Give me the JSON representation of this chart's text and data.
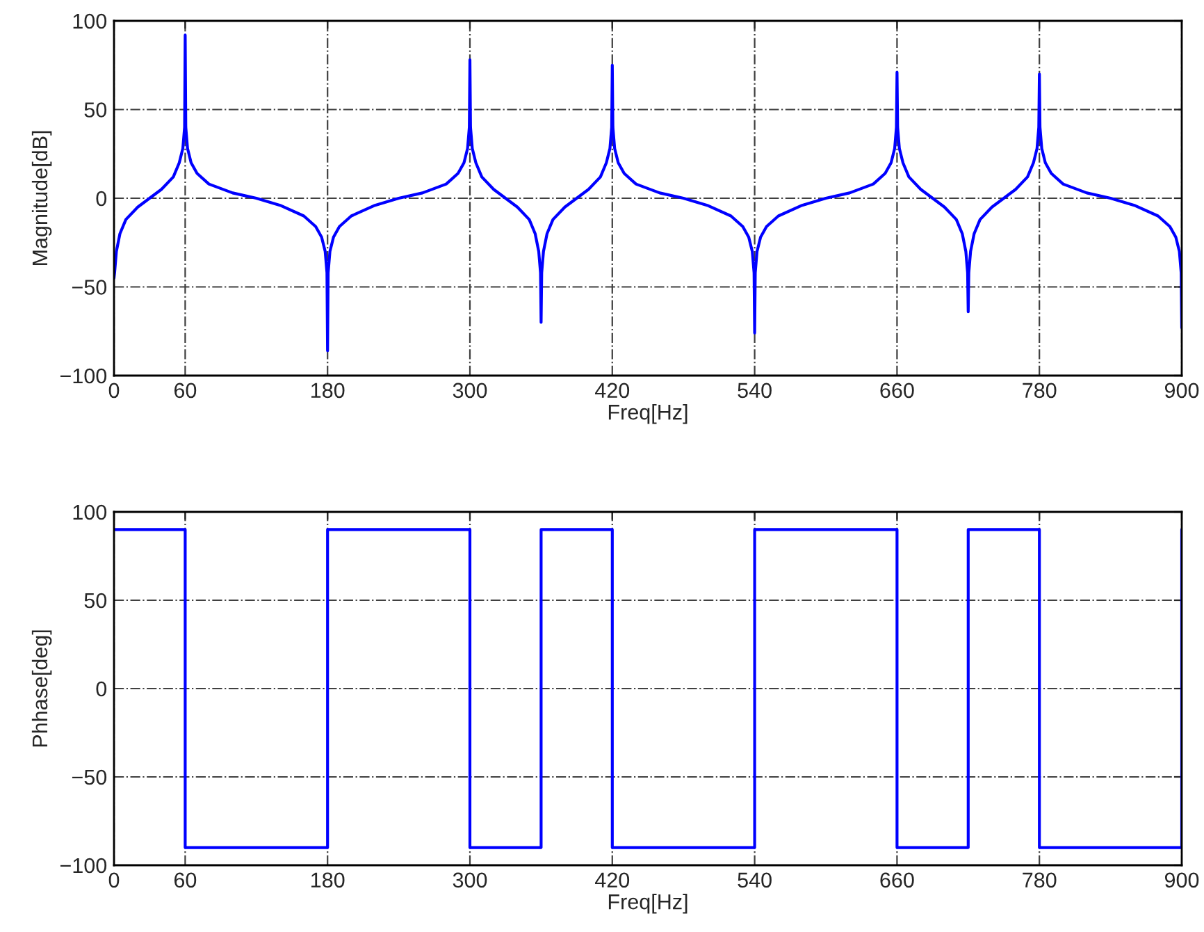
{
  "chart_data": [
    {
      "type": "line",
      "xlabel": "Freq[Hz]",
      "ylabel": "Magnitude[dB]",
      "xlim": [
        0,
        900
      ],
      "ylim": [
        -100,
        100
      ],
      "xticks": [
        0,
        60,
        180,
        300,
        420,
        540,
        660,
        780,
        900
      ],
      "yticks": [
        -100,
        -50,
        0,
        50,
        100
      ],
      "grid": true,
      "legend": false,
      "series": [
        {
          "color": "#0000ff",
          "line_style": "solid",
          "x": [
            0,
            0.5,
            2,
            5,
            10,
            20,
            30,
            40,
            50,
            55,
            58,
            59.5,
            60,
            60.5,
            62,
            65,
            70,
            80,
            100,
            120,
            140,
            160,
            170,
            175,
            178,
            179.5,
            180,
            180.5,
            182,
            185,
            190,
            200,
            220,
            240,
            260,
            280,
            290,
            295,
            298,
            299.5,
            300,
            300.5,
            302,
            305,
            310,
            320,
            330,
            340,
            350,
            355,
            358,
            359.5,
            360,
            360.5,
            362,
            365,
            370,
            380,
            390,
            400,
            410,
            415,
            418,
            419.5,
            420,
            420.5,
            422,
            425,
            430,
            440,
            460,
            480,
            500,
            520,
            530,
            535,
            538,
            539.5,
            540,
            540.5,
            542,
            545,
            550,
            560,
            580,
            600,
            620,
            640,
            650,
            655,
            658,
            659.5,
            660,
            660.5,
            662,
            665,
            670,
            680,
            690,
            700,
            710,
            715,
            718,
            719.5,
            720,
            720.5,
            722,
            725,
            730,
            740,
            750,
            760,
            770,
            775,
            778,
            779.5,
            780,
            780.5,
            782,
            785,
            790,
            800,
            820,
            840,
            860,
            880,
            890,
            895,
            898,
            899.5,
            900
          ],
          "values": [
            -45,
            -42,
            -30,
            -20,
            -12,
            -5,
            0,
            5,
            12,
            20,
            28,
            40,
            92,
            40,
            28,
            20,
            14,
            8,
            3,
            0,
            -4,
            -10,
            -16,
            -22,
            -30,
            -42,
            -86,
            -42,
            -30,
            -22,
            -16,
            -10,
            -4,
            0,
            3,
            8,
            14,
            20,
            28,
            40,
            78,
            40,
            28,
            20,
            12,
            5,
            0,
            -5,
            -12,
            -20,
            -30,
            -42,
            -70,
            -42,
            -30,
            -20,
            -12,
            -5,
            0,
            5,
            12,
            20,
            28,
            40,
            75,
            40,
            28,
            20,
            14,
            8,
            3,
            0,
            -4,
            -10,
            -16,
            -22,
            -30,
            -42,
            -76,
            -42,
            -30,
            -22,
            -16,
            -10,
            -4,
            0,
            3,
            8,
            14,
            20,
            28,
            40,
            71,
            40,
            28,
            20,
            12,
            5,
            0,
            -5,
            -12,
            -20,
            -30,
            -42,
            -64,
            -42,
            -30,
            -20,
            -12,
            -5,
            0,
            5,
            12,
            20,
            28,
            40,
            70,
            40,
            28,
            20,
            14,
            8,
            3,
            0,
            -4,
            -10,
            -16,
            -22,
            -30,
            -42,
            -73
          ]
        }
      ]
    },
    {
      "type": "step",
      "xlabel": "Freq[Hz]",
      "ylabel": "Phhase[deg]",
      "xlim": [
        0,
        900
      ],
      "ylim": [
        -100,
        100
      ],
      "xticks": [
        0,
        60,
        180,
        300,
        420,
        540,
        660,
        780,
        900
      ],
      "yticks": [
        -100,
        -50,
        0,
        50,
        100
      ],
      "grid": true,
      "legend": false,
      "series": [
        {
          "color": "#0000ff",
          "line_style": "solid",
          "x": [
            0,
            60,
            180,
            300,
            360,
            420,
            540,
            660,
            720,
            780,
            900
          ],
          "values": [
            90,
            -90,
            90,
            -90,
            90,
            -90,
            90,
            -90,
            90,
            -90,
            90
          ]
        }
      ]
    }
  ]
}
